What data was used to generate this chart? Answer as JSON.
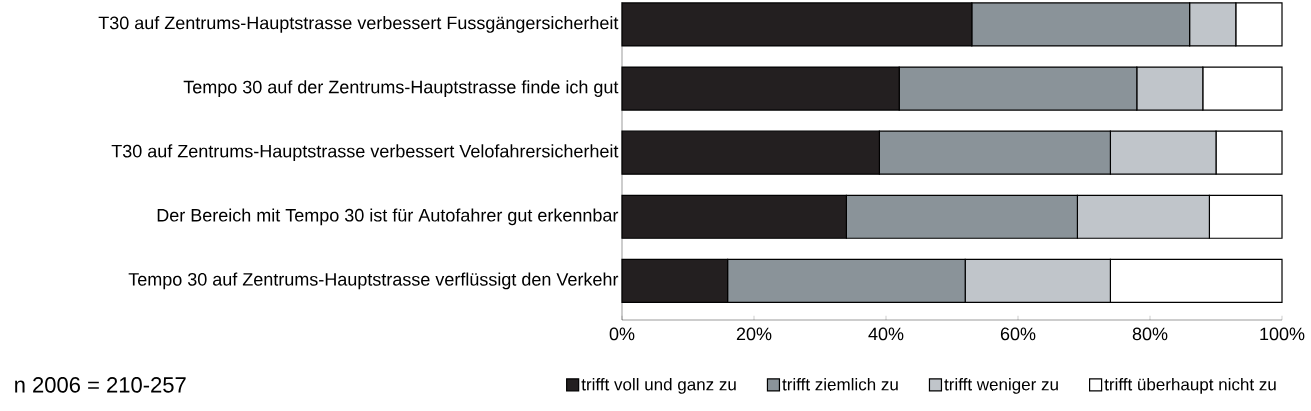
{
  "chart_data": {
    "type": "bar",
    "orientation": "horizontal",
    "stacked": true,
    "categories": [
      "T30 auf Zentrums-Hauptstrasse verbessert Fussgängersicherheit",
      "Tempo 30 auf der Zentrums-Hauptstrasse finde ich gut",
      "T30 auf Zentrums-Hauptstrasse verbessert Velofahrersicherheit",
      "Der Bereich mit Tempo 30 ist für Autofahrer gut erkennbar",
      "Tempo 30 auf Zentrums-Hauptstrasse verflüssigt den Verkehr"
    ],
    "series": [
      {
        "name": "trifft voll und ganz zu",
        "color": "#231f20",
        "values": [
          53,
          42,
          39,
          34,
          16
        ]
      },
      {
        "name": "trifft ziemlich zu",
        "color": "#8a9399",
        "values": [
          33,
          36,
          35,
          35,
          36
        ]
      },
      {
        "name": "trifft weniger zu",
        "color": "#c0c5ca",
        "values": [
          7,
          10,
          16,
          20,
          22
        ]
      },
      {
        "name": "trifft überhaupt nicht zu",
        "color": "#ffffff",
        "values": [
          7,
          12,
          10,
          11,
          26
        ]
      }
    ],
    "xlim": [
      0,
      100
    ],
    "xticks": [
      {
        "value": 0,
        "label": "0%"
      },
      {
        "value": 20,
        "label": "20%"
      },
      {
        "value": 40,
        "label": "40%"
      },
      {
        "value": 60,
        "label": "60%"
      },
      {
        "value": 80,
        "label": "80%"
      },
      {
        "value": 100,
        "label": "100%"
      }
    ],
    "legend": "bottom",
    "annotations": [
      "n 2006 = 210-257"
    ]
  }
}
